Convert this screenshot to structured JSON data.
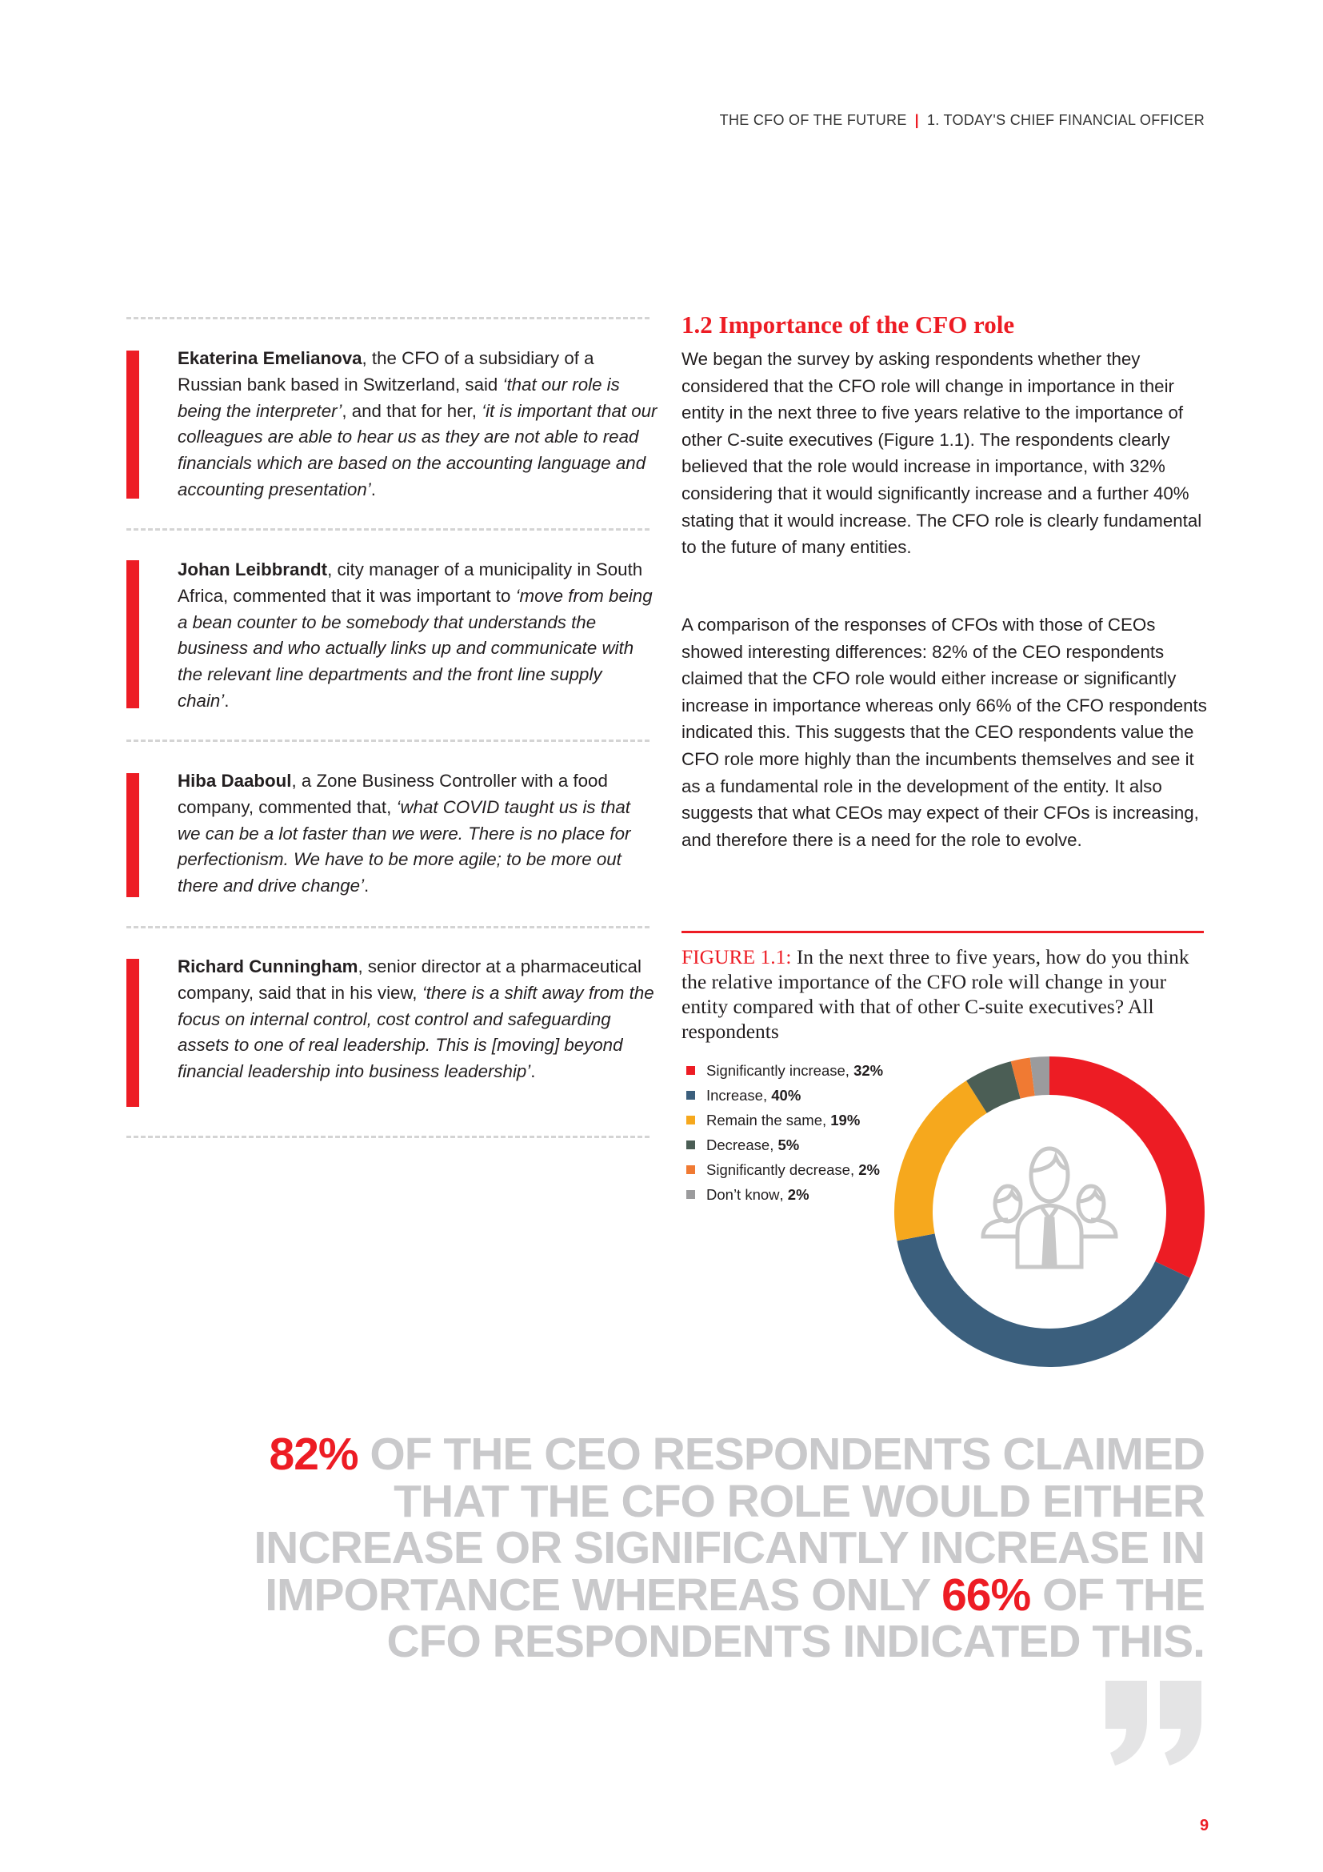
{
  "header": {
    "doc_title": "THE CFO OF THE FUTURE",
    "separator": "|",
    "chapter": "1. TODAY'S CHIEF FINANCIAL OFFICER"
  },
  "quotes": [
    {
      "name": "Ekaterina Emelianova",
      "t1": ", the CFO of a subsidiary of a Russian bank based in Switzerland, said ",
      "i1": "‘that our role is being the interpreter’",
      "t2": ", and that for her, ",
      "i2": "‘it is important that our colleagues are able to hear us as they are not able to read financials which are based on the accounting language and accounting presentation’",
      "t3": "."
    },
    {
      "name": "Johan Leibbrandt",
      "t1": ", city manager of a municipality in South Africa, commented that it was important to ",
      "i1": "‘move from being a bean counter to be somebody that understands the business and who actually links up and communicate with the relevant line departments and the front line supply chain’",
      "t3": "."
    },
    {
      "name": "Hiba Daaboul",
      "t1": ", a Zone Business Controller with a food company, commented that, ",
      "i1": "‘what COVID taught us is that we can be a lot faster than we were. There is no place for perfectionism. We have to be more agile; to be more out there and drive change’",
      "t3": "."
    },
    {
      "name": "Richard Cunningham",
      "t1": ", senior director at a pharmaceutical company, said that in his view, ",
      "i1": "‘there is a shift away from the focus on internal control, cost control and safeguarding assets to one of real leadership. This is [moving] beyond financial leadership into business leadership’",
      "t3": "."
    }
  ],
  "section": {
    "heading": "1.2 Importance of the CFO role",
    "p1": "We began the survey by asking respondents whether they considered that the CFO role will change in importance in their entity in the next three to five years relative to the importance of other C-suite executives (Figure 1.1). The respondents clearly believed that the role would increase in importance, with 32% considering that it would significantly increase and a further 40% stating that it would increase. The CFO role is clearly fundamental to the future of many entities.",
    "p2": "A comparison of the responses of CFOs with those of CEOs showed interesting differences: 82% of the CEO respondents claimed that the CFO role would either increase or significantly increase in importance whereas only 66% of the CFO respondents indicated this. This suggests that the CEO respondents value the CFO role more highly than the incumbents themselves and see it as a fundamental role in the development of the entity. It also suggests that what CEOs may expect of their CFOs is increasing, and therefore there is a need for the role to evolve."
  },
  "chart_data": {
    "type": "pie",
    "variant": "donut",
    "figure_label": "FIGURE 1.1:",
    "title": "In the next three to five years, how do you think the relative importance of the CFO role will change in your entity compared with that of other C-suite executives? All respondents",
    "legend_position": "left",
    "center_icon": "people-group-icon",
    "slices": [
      {
        "label": "Significantly increase",
        "value": 32,
        "value_label": "32%",
        "color": "#ed1c24"
      },
      {
        "label": "Increase",
        "value": 40,
        "value_label": "40%",
        "color": "#3b5f7d"
      },
      {
        "label": "Remain the same",
        "value": 19,
        "value_label": "19%",
        "color": "#f6a81d"
      },
      {
        "label": "Decrease",
        "value": 5,
        "value_label": "5%",
        "color": "#4b5e55"
      },
      {
        "label": "Significantly decrease",
        "value": 2,
        "value_label": "2%",
        "color": "#f07a33"
      },
      {
        "label": "Don’t know",
        "value": 2,
        "value_label": "2%",
        "color": "#9b9b9d"
      }
    ]
  },
  "pullquote": {
    "l1a": "82%",
    "l1b": " OF THE CEO RESPONDENTS CLAIMED",
    "l2": "THAT THE CFO ROLE WOULD EITHER",
    "l3": "INCREASE OR SIGNIFICANTLY INCREASE IN",
    "l4a": "IMPORTANCE WHEREAS ONLY ",
    "l4b": "66%",
    "l4c": " OF THE",
    "l5": "CFO RESPONDENTS INDICATED THIS."
  },
  "colors": {
    "accent": "#ed1c24",
    "pull_gray": "#c9c9cb"
  },
  "page_number": "9"
}
